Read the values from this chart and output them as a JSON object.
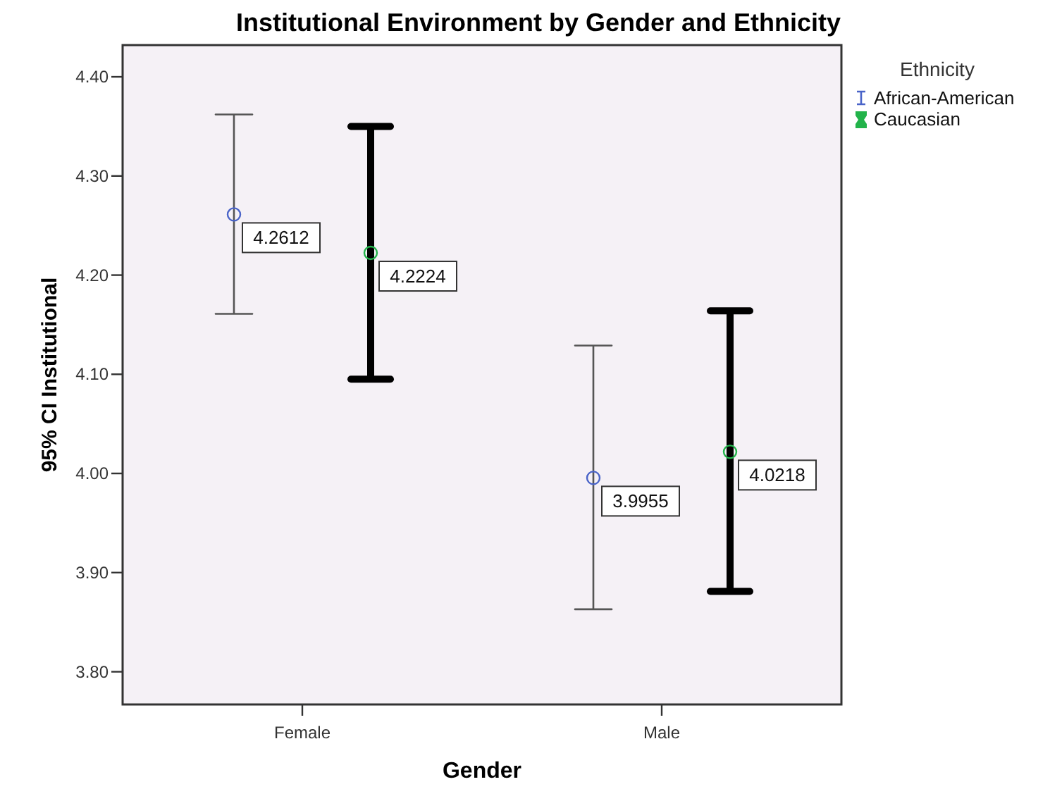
{
  "chart_data": {
    "type": "scatter",
    "title": "Institutional Environment by Gender and Ethnicity",
    "xlabel": "Gender",
    "ylabel": "95% CI Institutional",
    "legend_title": "Ethnicity",
    "legend": "top right",
    "marker": "circle",
    "data_labels": true,
    "categories": [
      "Female",
      "Male"
    ],
    "ylim": [
      3.767,
      4.432
    ],
    "yticks": [
      {
        "value": 3.8,
        "label": "3.80"
      },
      {
        "value": 3.9,
        "label": "3.90"
      },
      {
        "value": 4.0,
        "label": "4.00"
      },
      {
        "value": 4.1,
        "label": "4.10"
      },
      {
        "value": 4.2,
        "label": "4.20"
      },
      {
        "value": 4.3,
        "label": "4.30"
      },
      {
        "value": 4.4,
        "label": "4.40"
      }
    ],
    "series": [
      {
        "name": "African-American",
        "color": "#4a64c8",
        "values": [
          4.2612,
          3.9955
        ],
        "errors": [
          [
            4.161,
            4.362
          ],
          [
            3.863,
            4.129
          ]
        ]
      },
      {
        "name": "Caucasian",
        "color": "#22b34a",
        "values": [
          4.2224,
          4.0218
        ],
        "errors": [
          [
            4.095,
            4.35
          ],
          [
            3.881,
            4.164
          ]
        ]
      }
    ]
  }
}
